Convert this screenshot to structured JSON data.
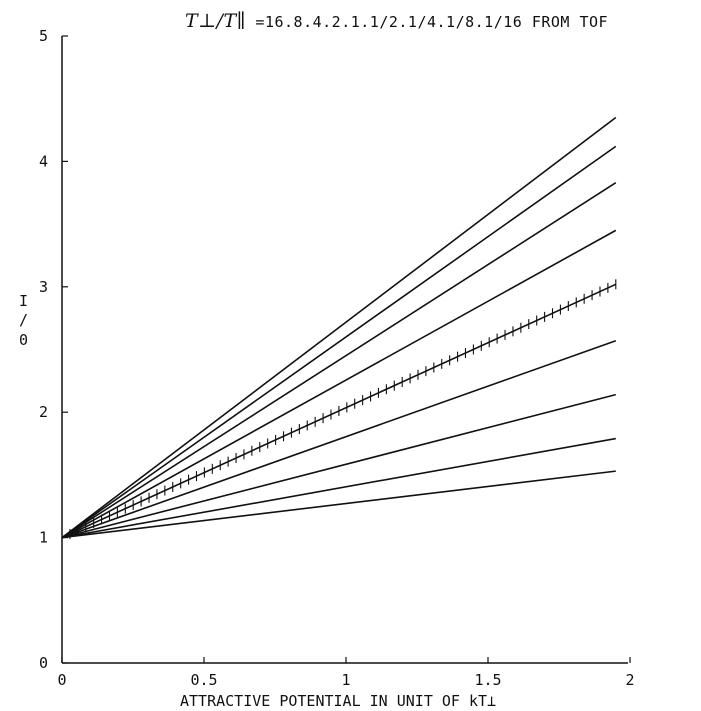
{
  "chart_data": {
    "type": "line",
    "title_main": "T⊥/T∥",
    "title_rest": " =16.8.4.2.1.1/2.1/4.1/8.1/16  FROM TOF",
    "xlabel": "ATTRACTIVE POTENTIAL IN UNIT OF kT⊥",
    "ylabel": "I/I0",
    "ylabel_top": "I",
    "ylabel_bar": "/",
    "ylabel_bottom": "0",
    "xlim": [
      0,
      2
    ],
    "ylim": [
      0,
      5
    ],
    "x_ticks": [
      0,
      0.5,
      1,
      1.5,
      2
    ],
    "x_tick_labels": [
      "0",
      "0.5",
      "1",
      "1.5",
      "2"
    ],
    "y_ticks": [
      0,
      1,
      2,
      3,
      4,
      5
    ],
    "y_tick_labels": [
      "0",
      "1",
      "2",
      "3",
      "4",
      "5"
    ],
    "grid": false,
    "series": [
      {
        "x": [
          0,
          1.95
        ],
        "values": [
          1,
          4.35
        ],
        "marker": "none"
      },
      {
        "x": [
          0,
          1.95
        ],
        "values": [
          1,
          4.12
        ],
        "marker": "none"
      },
      {
        "x": [
          0,
          1.95
        ],
        "values": [
          1,
          3.83
        ],
        "marker": "none"
      },
      {
        "x": [
          0,
          1.95
        ],
        "values": [
          1,
          3.45
        ],
        "marker": "none"
      },
      {
        "x": [
          0,
          1.95
        ],
        "values": [
          1,
          3.02
        ],
        "marker": "plus"
      },
      {
        "x": [
          0,
          1.95
        ],
        "values": [
          1,
          2.57
        ],
        "marker": "none"
      },
      {
        "x": [
          0,
          1.95
        ],
        "values": [
          1,
          2.14
        ],
        "marker": "none"
      },
      {
        "x": [
          0,
          1.95
        ],
        "values": [
          1,
          1.79
        ],
        "marker": "none"
      },
      {
        "x": [
          0,
          1.95
        ],
        "values": [
          1,
          1.53
        ],
        "marker": "none"
      }
    ],
    "colors": {
      "line": "#111111",
      "axis": "#111111"
    }
  }
}
